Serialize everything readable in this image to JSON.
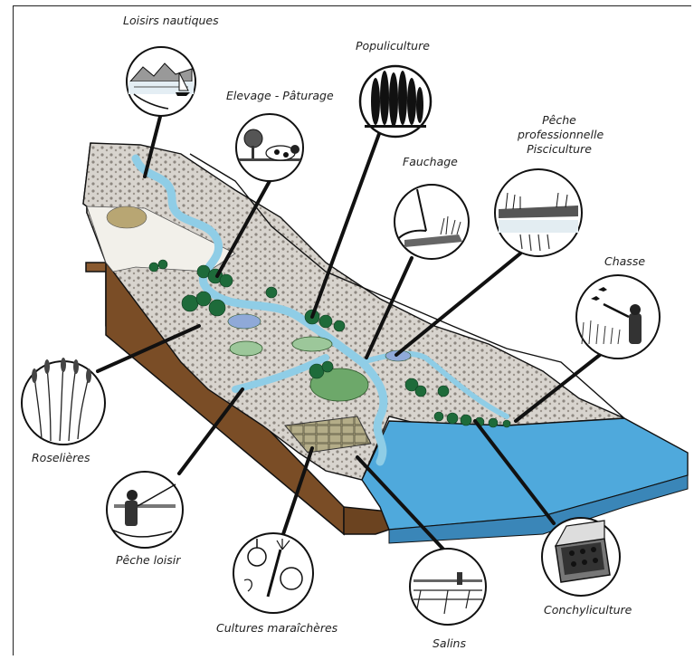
{
  "diagram": {
    "labels": {
      "loisirs_nautiques": "Loisirs nautiques",
      "elevage_paturage": "Elevage - Pâturage",
      "populiculture": "Populiculture",
      "fauchage": "Fauchage",
      "peche_pro_1": "Pêche",
      "peche_pro_2": "professionnelle",
      "peche_pro_3": "Pisciculture",
      "chasse": "Chasse",
      "roselieres": "Roselières",
      "peche_loisir": "Pêche loisir",
      "cultures_maraicheres": "Cultures maraîchères",
      "salins": "Salins",
      "conchyliculture": "Conchyliculture"
    },
    "icons": [
      "sailing-landscape-icon",
      "cattle-icon",
      "poplar-trees-icon",
      "scythe-icon",
      "fish-pond-icon",
      "hunter-ducks-icon",
      "reeds-icon",
      "angler-icon",
      "vegetables-icon",
      "salt-marsh-icon",
      "shellfish-crate-icon"
    ],
    "colors": {
      "water": "#8fcde6",
      "sea": "#4fa9dc",
      "soil": "#8a5a30",
      "trees": "#1e6b3a",
      "meadow": "#9cc79a",
      "rocky": "#c9c4bd",
      "outline": "#111111"
    }
  }
}
